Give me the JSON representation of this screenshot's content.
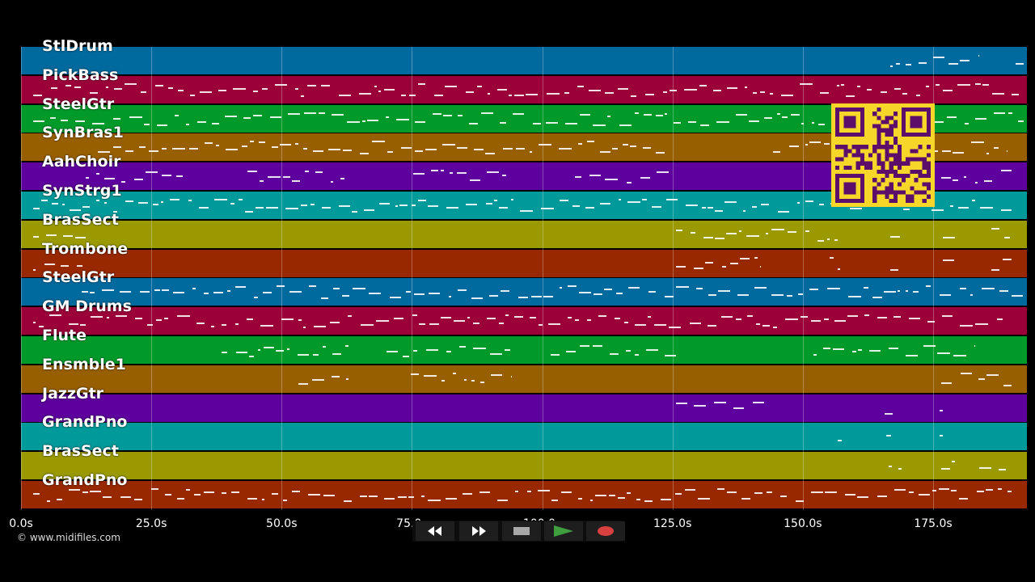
{
  "tracks": [
    {
      "name": "StlDrum",
      "color": "#006a9e"
    },
    {
      "name": "PickBass",
      "color": "#9c0038"
    },
    {
      "name": "SteelGtr",
      "color": "#009a2a"
    },
    {
      "name": "SynBras1",
      "color": "#985f00"
    },
    {
      "name": "AahChoir",
      "color": "#5e009e"
    },
    {
      "name": "SynStrg1",
      "color": "#009a9a"
    },
    {
      "name": "BrasSect",
      "color": "#9a9a00"
    },
    {
      "name": "Trombone",
      "color": "#982800"
    },
    {
      "name": "SteelGtr",
      "color": "#006a9e"
    },
    {
      "name": "GM Drums",
      "color": "#9c0038"
    },
    {
      "name": "Flute",
      "color": "#009a2a"
    },
    {
      "name": "Ensmble1",
      "color": "#985f00"
    },
    {
      "name": "JazzGtr",
      "color": "#5e009e"
    },
    {
      "name": "GrandPno",
      "color": "#009a9a"
    },
    {
      "name": "BrasSect",
      "color": "#9a9a00"
    },
    {
      "name": "GrandPno",
      "color": "#982800"
    }
  ],
  "timeline": {
    "max_seconds": 193,
    "ticks": [
      {
        "value": 0,
        "label": "0.0s"
      },
      {
        "value": 25,
        "label": "25.0s"
      },
      {
        "value": 50,
        "label": "50.0s"
      },
      {
        "value": 75,
        "label": "75.0s"
      },
      {
        "value": 100,
        "label": "100.0s"
      },
      {
        "value": 125,
        "label": "125.0s"
      },
      {
        "value": 150,
        "label": "150.0s"
      },
      {
        "value": 175,
        "label": "175.0s"
      }
    ]
  },
  "copyright": "© www.midifiles.com",
  "transport": {
    "rewind_icon": "rewind-icon",
    "fast_forward_icon": "fast-forward-icon",
    "stop_icon": "stop-icon",
    "play_icon": "play-icon",
    "record_icon": "record-icon",
    "play_color": "#3f9f3f",
    "record_color": "#d94040"
  },
  "qr_code": {
    "color": "#5b0f6b",
    "background": "#f6d629"
  }
}
